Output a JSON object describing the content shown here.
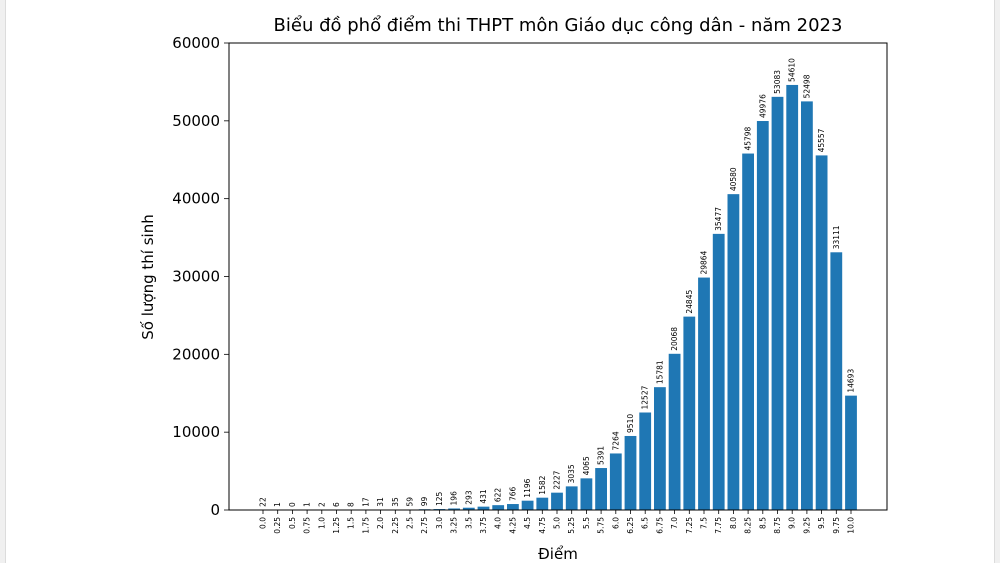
{
  "chart_data": {
    "type": "bar",
    "title": "Biểu đồ phổ điểm thi THPT môn Giáo dục công dân - năm 2023",
    "xlabel": "Điểm",
    "ylabel": "Số lượng thí sinh",
    "ylim": [
      0,
      60000
    ],
    "yticks": [
      "0",
      "10000",
      "20000",
      "30000",
      "40000",
      "50000",
      "60000"
    ],
    "bar_color": "#1f77b4",
    "grid": false,
    "categories": [
      "0.0",
      "0.25",
      "0.5",
      "0.75",
      "1.0",
      "1.25",
      "1.5",
      "1.75",
      "2.0",
      "2.25",
      "2.5",
      "2.75",
      "3.0",
      "3.25",
      "3.5",
      "3.75",
      "4.0",
      "4.25",
      "4.5",
      "4.75",
      "5.0",
      "5.25",
      "5.5",
      "5.75",
      "6.0",
      "6.25",
      "6.5",
      "6.75",
      "7.0",
      "7.25",
      "7.5",
      "7.75",
      "8.0",
      "8.25",
      "8.5",
      "8.75",
      "9.0",
      "9.25",
      "9.5",
      "9.75",
      "10.0"
    ],
    "values": [
      22,
      1,
      0,
      1,
      2,
      6,
      8,
      17,
      31,
      35,
      59,
      99,
      125,
      196,
      293,
      431,
      622,
      766,
      1196,
      1582,
      2227,
      3035,
      4065,
      5391,
      7264,
      9510,
      12527,
      15781,
      20068,
      24845,
      29864,
      35477,
      40580,
      45798,
      49976,
      53083,
      54610,
      52498,
      45557,
      33111,
      14693
    ],
    "value_labels": [
      "22",
      "1",
      "0",
      "1",
      "2",
      "6",
      "8",
      "17",
      "31",
      "35",
      "59",
      "99",
      "125",
      "196",
      "293",
      "431",
      "622",
      "766",
      "1196",
      "1582",
      "2227",
      "3035",
      "4065",
      "5391",
      "7264",
      "9510",
      "12527",
      "15781",
      "20068",
      "24845",
      "29864",
      "35477",
      "40580",
      "45798",
      "49976",
      "53083",
      "54610",
      "52498",
      "45557",
      "33111",
      "14693"
    ]
  }
}
